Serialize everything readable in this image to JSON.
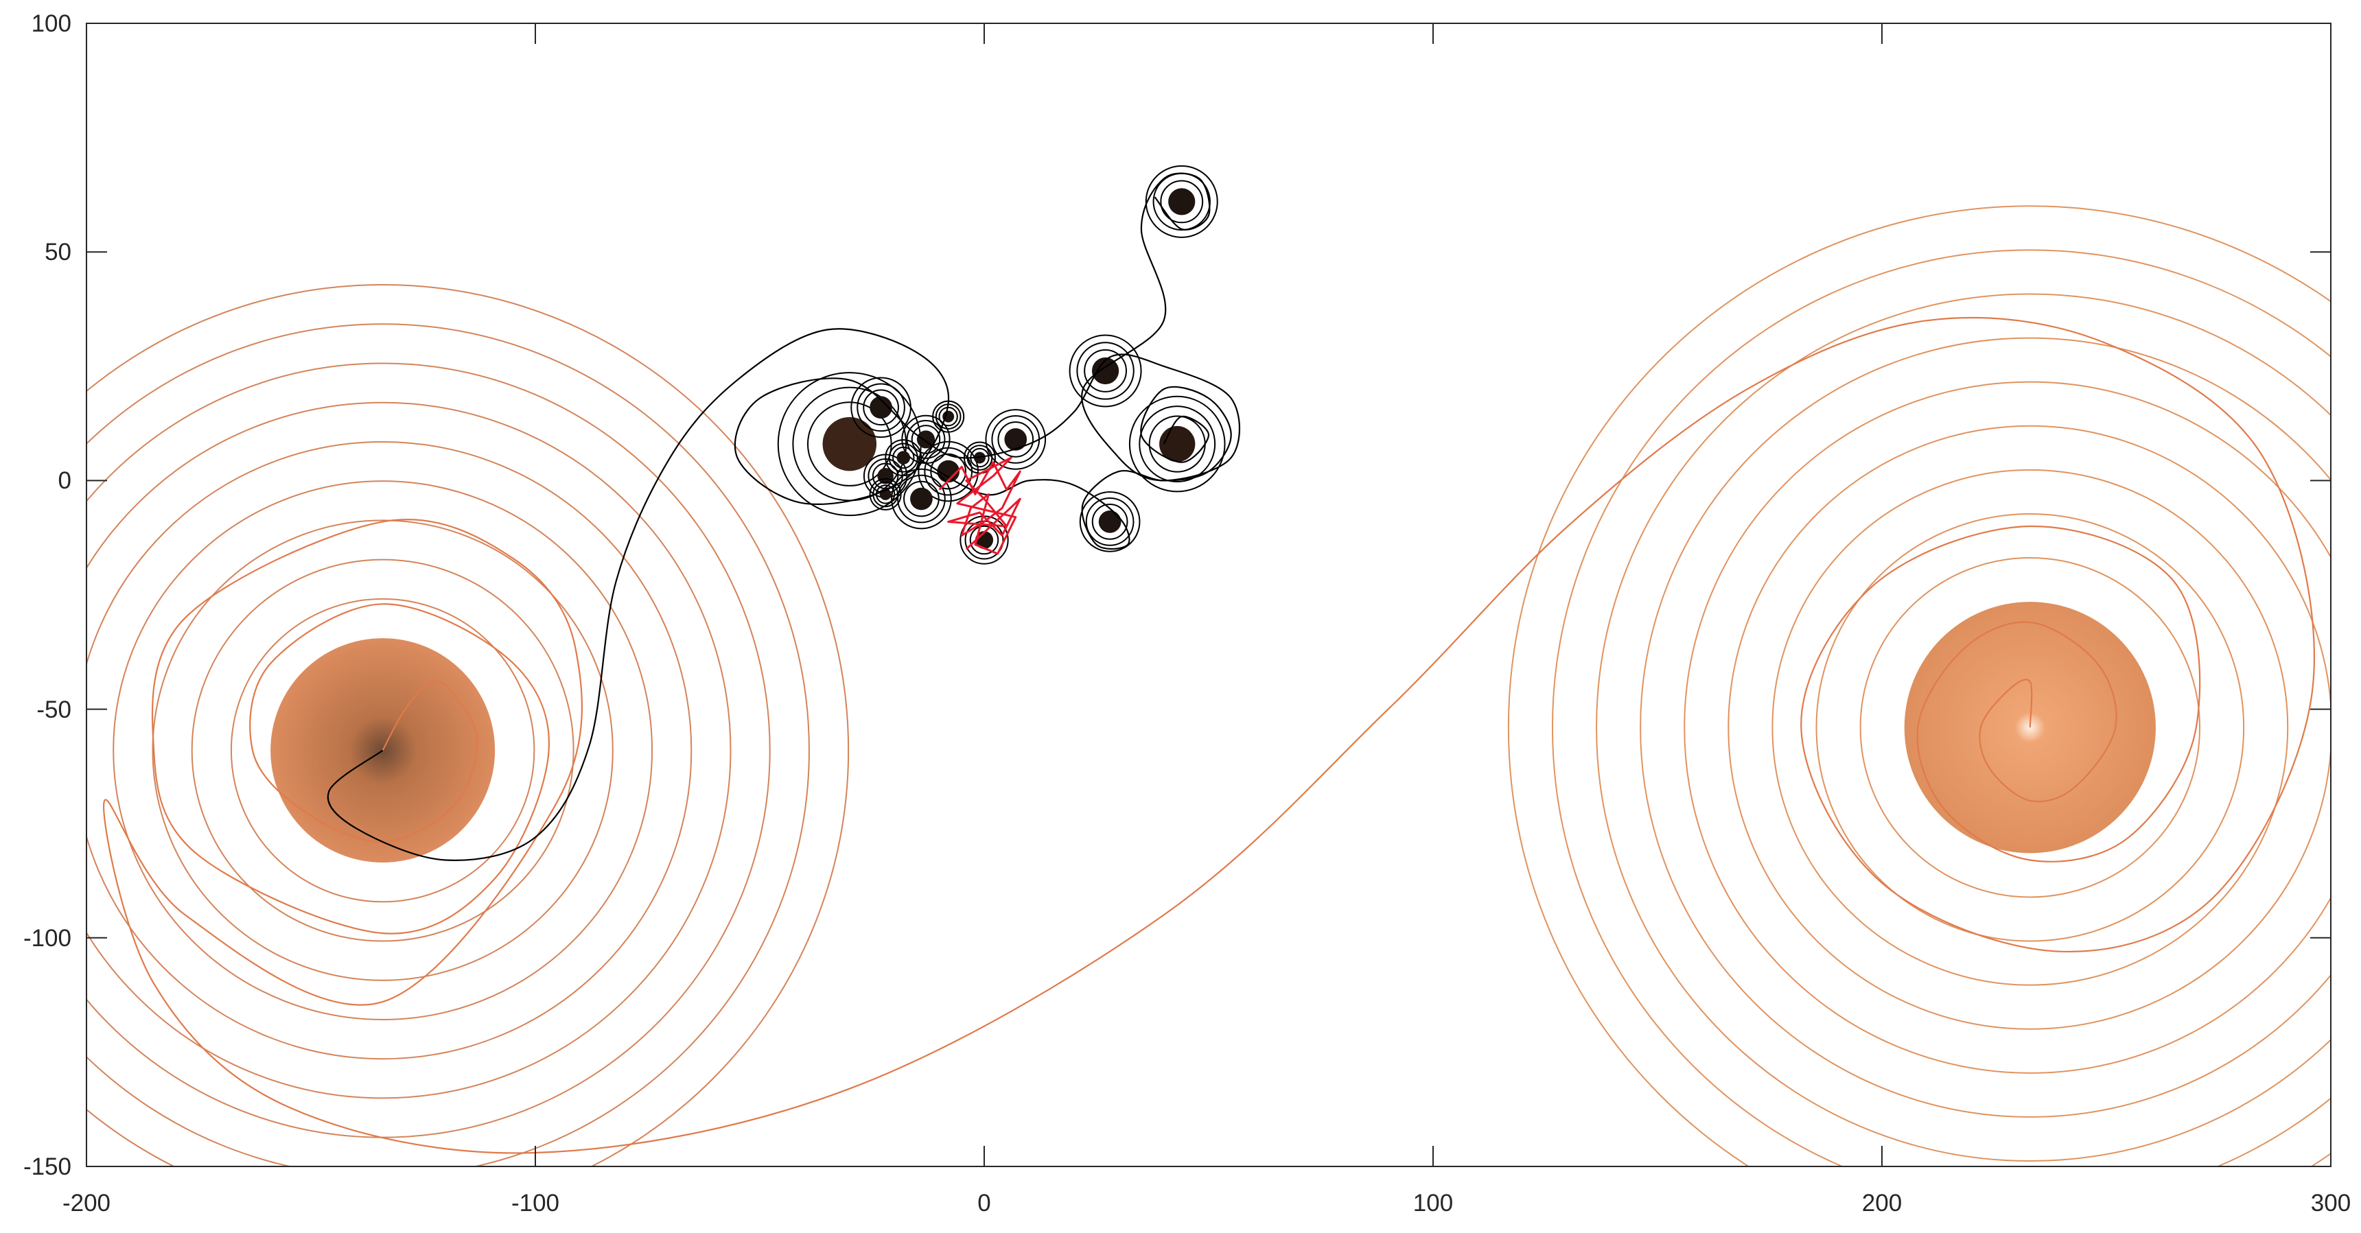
{
  "chart_data": {
    "type": "line",
    "title": "",
    "xlabel": "",
    "ylabel": "",
    "xlim": [
      -200,
      300
    ],
    "ylim": [
      -150,
      100
    ],
    "x_ticks": [
      -200,
      -100,
      0,
      100,
      200,
      300
    ],
    "y_ticks": [
      -150,
      -100,
      -50,
      0,
      50,
      100
    ],
    "x_tick_labels": [
      "-200",
      "-100",
      "0",
      "100",
      "200",
      "300"
    ],
    "y_tick_labels": [
      "-150",
      "-100",
      "-50",
      "0",
      "50",
      "100"
    ],
    "grid": false,
    "legend": "none",
    "series": [
      {
        "color": "#e07a4a",
        "style": "spiral_curve",
        "points": [
          [
            -134,
            -59
          ],
          [
            -129,
            -50
          ],
          [
            -123,
            -44
          ],
          [
            -118,
            -47
          ],
          [
            -113,
            -57
          ],
          [
            -118,
            -71
          ],
          [
            -134,
            -79
          ],
          [
            -152,
            -72
          ],
          [
            -163,
            -59
          ],
          [
            -159,
            -40
          ],
          [
            -134,
            -27
          ],
          [
            -106,
            -39
          ],
          [
            -97,
            -59
          ],
          [
            -109,
            -87
          ],
          [
            -134,
            -99
          ],
          [
            -175,
            -82
          ],
          [
            -185,
            -59
          ],
          [
            -178,
            -30
          ],
          [
            -134,
            -9
          ],
          [
            -105,
            -17
          ],
          [
            -91,
            -37
          ],
          [
            -95,
            -70
          ],
          [
            -134,
            -114
          ],
          [
            -178,
            -95
          ],
          [
            -196,
            -70
          ],
          [
            -185,
            -110
          ],
          [
            -155,
            -137
          ],
          [
            -100,
            -147
          ],
          [
            -30,
            -133
          ],
          [
            40,
            -95
          ],
          [
            90,
            -50
          ],
          [
            130,
            -10
          ],
          [
            170,
            20
          ],
          [
            210,
            35
          ],
          [
            250,
            30
          ],
          [
            285,
            5
          ],
          [
            296,
            -45
          ],
          [
            275,
            -90
          ],
          [
            240,
            -103
          ],
          [
            200,
            -88
          ],
          [
            182,
            -54
          ],
          [
            198,
            -23
          ],
          [
            233,
            -10
          ],
          [
            265,
            -22
          ],
          [
            270,
            -54
          ],
          [
            255,
            -78
          ],
          [
            233,
            -83
          ],
          [
            214,
            -72
          ],
          [
            208,
            -54
          ],
          [
            218,
            -37
          ],
          [
            233,
            -31
          ],
          [
            248,
            -40
          ],
          [
            252,
            -54
          ],
          [
            243,
            -67
          ],
          [
            233,
            -70
          ],
          [
            224,
            -63
          ],
          [
            222,
            -54
          ],
          [
            228,
            -46
          ],
          [
            233,
            -44
          ],
          [
            233,
            -54
          ]
        ]
      },
      {
        "color": "#000000",
        "style": "spiral_curve",
        "points": [
          [
            -134,
            -59
          ],
          [
            -146,
            -68
          ],
          [
            -140,
            -76
          ],
          [
            -120,
            -83
          ],
          [
            -100,
            -78
          ],
          [
            -88,
            -58
          ],
          [
            -82,
            -22
          ],
          [
            -70,
            5
          ],
          [
            -55,
            22
          ],
          [
            -35,
            33
          ],
          [
            -15,
            28
          ],
          [
            -8,
            17
          ],
          [
            -18,
            0
          ],
          [
            -40,
            -5
          ],
          [
            -55,
            5
          ],
          [
            -50,
            18
          ],
          [
            -30,
            22
          ],
          [
            -15,
            10
          ],
          [
            -5,
            5
          ],
          [
            10,
            8
          ],
          [
            20,
            15
          ],
          [
            28,
            27
          ],
          [
            40,
            25
          ],
          [
            55,
            18
          ],
          [
            55,
            5
          ],
          [
            40,
            0
          ],
          [
            30,
            5
          ],
          [
            22,
            20
          ],
          [
            40,
            35
          ],
          [
            35,
            55
          ],
          [
            40,
            66
          ],
          [
            48,
            66
          ],
          [
            50,
            58
          ],
          [
            44,
            55
          ],
          [
            38,
            62
          ]
        ]
      },
      {
        "color": "#000000",
        "style": "spiral_curve",
        "points": [
          [
            -15,
            5
          ],
          [
            0,
            -3
          ],
          [
            10,
            0
          ],
          [
            20,
            -1
          ],
          [
            30,
            -8
          ],
          [
            32,
            -14
          ],
          [
            25,
            -14
          ],
          [
            22,
            -5
          ],
          [
            30,
            2
          ],
          [
            40,
            0
          ],
          [
            50,
            2
          ],
          [
            55,
            10
          ],
          [
            50,
            18
          ],
          [
            40,
            20
          ],
          [
            35,
            10
          ],
          [
            44,
            4
          ],
          [
            50,
            10
          ],
          [
            44,
            14
          ],
          [
            40,
            8
          ]
        ]
      },
      {
        "color": "#e8192c",
        "style": "random_walk",
        "points": [
          [
            -10,
            -2
          ],
          [
            -5,
            3
          ],
          [
            -2,
            -3
          ],
          [
            2,
            4
          ],
          [
            5,
            -2
          ],
          [
            8,
            2
          ],
          [
            4,
            -6
          ],
          [
            0,
            -9
          ],
          [
            -5,
            -12
          ],
          [
            -3,
            -6
          ],
          [
            1,
            -3
          ],
          [
            -2,
            -14
          ],
          [
            3,
            -16
          ],
          [
            7,
            -8
          ],
          [
            -6,
            -5
          ],
          [
            2,
            1
          ],
          [
            6,
            5
          ],
          [
            -4,
            0
          ],
          [
            0,
            -4
          ],
          [
            5,
            -10
          ],
          [
            -8,
            -9
          ],
          [
            -1,
            -7
          ],
          [
            4,
            -12
          ],
          [
            8,
            -4
          ],
          [
            -4,
            -15
          ]
        ]
      }
    ],
    "vortices": [
      {
        "x": -134,
        "y": -59,
        "r": 25,
        "color": "#d4845a"
      },
      {
        "x": 233,
        "y": -54,
        "r": 28,
        "color": "#e0935f"
      },
      {
        "x": -30,
        "y": 8,
        "r": 6,
        "color": "#3c2418"
      },
      {
        "x": 44,
        "y": 61,
        "r": 3,
        "color": "#1e1410"
      },
      {
        "x": 27,
        "y": 24,
        "r": 3,
        "color": "#1e1410"
      },
      {
        "x": 43,
        "y": 8,
        "r": 4,
        "color": "#2b1a12"
      },
      {
        "x": 28,
        "y": -9,
        "r": 2.5,
        "color": "#1e1410"
      },
      {
        "x": -23,
        "y": 16,
        "r": 2.5,
        "color": "#1e1410"
      },
      {
        "x": -13,
        "y": 9,
        "r": 2,
        "color": "#1e1410"
      },
      {
        "x": -8,
        "y": 2,
        "r": 2.5,
        "color": "#1e1410"
      },
      {
        "x": 7,
        "y": 9,
        "r": 2.5,
        "color": "#1e1410"
      },
      {
        "x": -14,
        "y": -4,
        "r": 2.5,
        "color": "#1e1410"
      },
      {
        "x": 0,
        "y": -13,
        "r": 2,
        "color": "#1e1410"
      },
      {
        "x": -22,
        "y": 1,
        "r": 1.8,
        "color": "#1e1410"
      },
      {
        "x": -18,
        "y": 5,
        "r": 1.5,
        "color": "#1e1410"
      },
      {
        "x": -8,
        "y": 14,
        "r": 1.3,
        "color": "#1e1410"
      },
      {
        "x": -1,
        "y": 5,
        "r": 1.3,
        "color": "#1e1410"
      },
      {
        "x": -22,
        "y": -3,
        "r": 1.3,
        "color": "#1e1410"
      }
    ]
  }
}
